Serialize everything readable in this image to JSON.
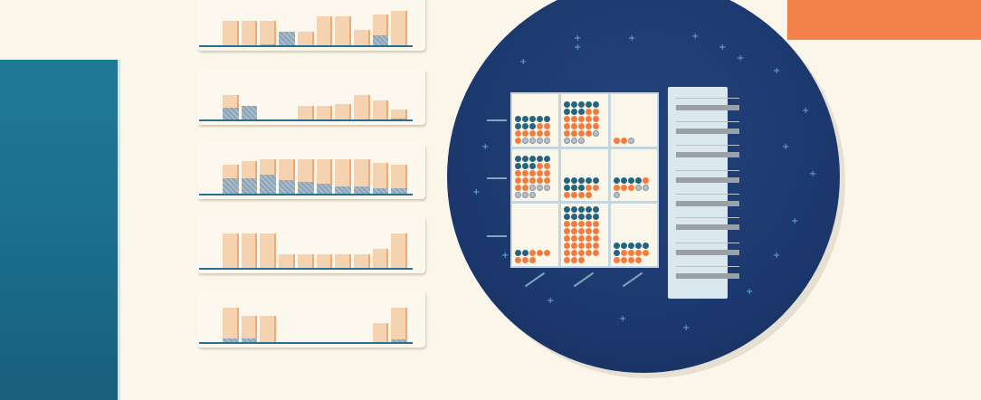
{
  "mini_charts": [
    {
      "name": "mini-chart-1",
      "bars": [
        {
          "total": 0.7,
          "highlight": 0.0
        },
        {
          "total": 0.7,
          "highlight": 0.0
        },
        {
          "total": 0.7,
          "highlight": 0.08
        },
        {
          "total": 0.4,
          "highlight": 0.4
        },
        {
          "total": 0.4,
          "highlight": 0.0
        },
        {
          "total": 0.8,
          "highlight": 0.0
        },
        {
          "total": 0.8,
          "highlight": 0.0
        },
        {
          "total": 0.45,
          "highlight": 0.0
        },
        {
          "total": 0.85,
          "highlight": 0.3
        },
        {
          "total": 0.95,
          "highlight": 0.0
        }
      ]
    },
    {
      "name": "mini-chart-2",
      "bars": [
        {
          "total": 0.7,
          "highlight": 0.35
        },
        {
          "total": 0.4,
          "highlight": 0.4
        },
        {
          "total": 0.0,
          "highlight": 0.0
        },
        {
          "total": 0.0,
          "highlight": 0.0
        },
        {
          "total": 0.4,
          "highlight": 0.0
        },
        {
          "total": 0.4,
          "highlight": 0.0
        },
        {
          "total": 0.45,
          "highlight": 0.0
        },
        {
          "total": 0.7,
          "highlight": 0.0
        },
        {
          "total": 0.55,
          "highlight": 0.0
        },
        {
          "total": 0.3,
          "highlight": 0.08
        }
      ]
    },
    {
      "name": "mini-chart-3",
      "bars": [
        {
          "total": 0.82,
          "highlight": 0.45
        },
        {
          "total": 0.9,
          "highlight": 0.45
        },
        {
          "total": 0.95,
          "highlight": 0.55
        },
        {
          "total": 0.95,
          "highlight": 0.4
        },
        {
          "total": 0.95,
          "highlight": 0.35
        },
        {
          "total": 0.95,
          "highlight": 0.3
        },
        {
          "total": 0.95,
          "highlight": 0.25
        },
        {
          "total": 0.95,
          "highlight": 0.25
        },
        {
          "total": 0.85,
          "highlight": 0.2
        },
        {
          "total": 0.82,
          "highlight": 0.2
        }
      ]
    },
    {
      "name": "mini-chart-4",
      "bars": [
        {
          "total": 0.95,
          "highlight": 0.0
        },
        {
          "total": 0.95,
          "highlight": 0.05
        },
        {
          "total": 0.95,
          "highlight": 0.05
        },
        {
          "total": 0.4,
          "highlight": 0.0
        },
        {
          "total": 0.4,
          "highlight": 0.0
        },
        {
          "total": 0.4,
          "highlight": 0.0
        },
        {
          "total": 0.4,
          "highlight": 0.0
        },
        {
          "total": 0.4,
          "highlight": 0.0
        },
        {
          "total": 0.55,
          "highlight": 0.0
        },
        {
          "total": 0.95,
          "highlight": 0.0
        }
      ]
    },
    {
      "name": "mini-chart-5",
      "bars": [
        {
          "total": 0.95,
          "highlight": 0.15
        },
        {
          "total": 0.75,
          "highlight": 0.15
        },
        {
          "total": 0.75,
          "highlight": 0.0
        },
        {
          "total": 0.0,
          "highlight": 0.0
        },
        {
          "total": 0.0,
          "highlight": 0.0
        },
        {
          "total": 0.0,
          "highlight": 0.0
        },
        {
          "total": 0.0,
          "highlight": 0.0
        },
        {
          "total": 0.0,
          "highlight": 0.0
        },
        {
          "total": 0.55,
          "highlight": 0.0
        },
        {
          "total": 0.95,
          "highlight": 0.12
        }
      ]
    }
  ],
  "dot_grid": {
    "cells": [
      {
        "orange": 8,
        "blue": 8,
        "gray": 4
      },
      {
        "orange": 16,
        "blue": 8,
        "gray": 4
      },
      {
        "orange": 2,
        "blue": 0,
        "gray": 1
      },
      {
        "orange": 14,
        "blue": 8,
        "gray": 6
      },
      {
        "orange": 6,
        "blue": 8,
        "gray": 0
      },
      {
        "orange": 4,
        "blue": 4,
        "gray": 3
      },
      {
        "orange": 6,
        "blue": 2,
        "gray": 0
      },
      {
        "orange": 28,
        "blue": 10,
        "gray": 0
      },
      {
        "orange": 8,
        "blue": 6,
        "gray": 0
      }
    ]
  },
  "colors": {
    "accent_orange": "#f27c3e",
    "accent_blue": "#23657f",
    "circle_navy": "#1d3a70",
    "background": "#fbf6ea"
  }
}
